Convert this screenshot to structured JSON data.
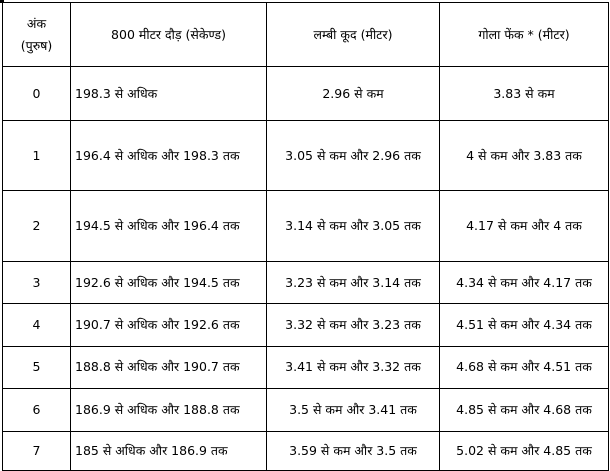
{
  "table": {
    "headers": {
      "points_line1": "अंक",
      "points_line2": "(पुरुष)",
      "run": "800 मीटर दौड़ (सेकेण्ड)",
      "long_jump": "लम्बी कूद (मीटर)",
      "shot_put": "गोला फेंक * (मीटर)"
    },
    "rows": [
      {
        "points": "0",
        "run": "198.3 से अधिक",
        "long_jump": "2.96 से कम",
        "shot_put": "3.83 से कम"
      },
      {
        "points": "1",
        "run": "196.4 से अधिक और 198.3 तक",
        "long_jump": "3.05 से कम और 2.96 तक",
        "shot_put": "4 से कम और 3.83 तक"
      },
      {
        "points": "2",
        "run": "194.5 से अधिक और 196.4 तक",
        "long_jump": "3.14 से कम और 3.05 तक",
        "shot_put": "4.17 से कम और 4 तक"
      },
      {
        "points": "3",
        "run": "192.6 से अधिक और 194.5 तक",
        "long_jump": "3.23 से कम और 3.14 तक",
        "shot_put": "4.34 से कम और 4.17 तक"
      },
      {
        "points": "4",
        "run": "190.7 से अधिक और 192.6 तक",
        "long_jump": "3.32 से कम और 3.23 तक",
        "shot_put": "4.51 से कम और 4.34 तक"
      },
      {
        "points": "5",
        "run": "188.8 से अधिक और 190.7 तक",
        "long_jump": "3.41 से कम और 3.32 तक",
        "shot_put": "4.68 से कम और 4.51 तक"
      },
      {
        "points": "6",
        "run": "186.9 से अधिक और 188.8 तक",
        "long_jump": "3.5 से कम और 3.41 तक",
        "shot_put": "4.85 से कम और 4.68 तक"
      },
      {
        "points": "7",
        "run": "185 से अधिक और 186.9 तक",
        "long_jump": "3.59 से कम और 3.5 तक",
        "shot_put": "5.02 से कम और 4.85 तक"
      }
    ]
  }
}
